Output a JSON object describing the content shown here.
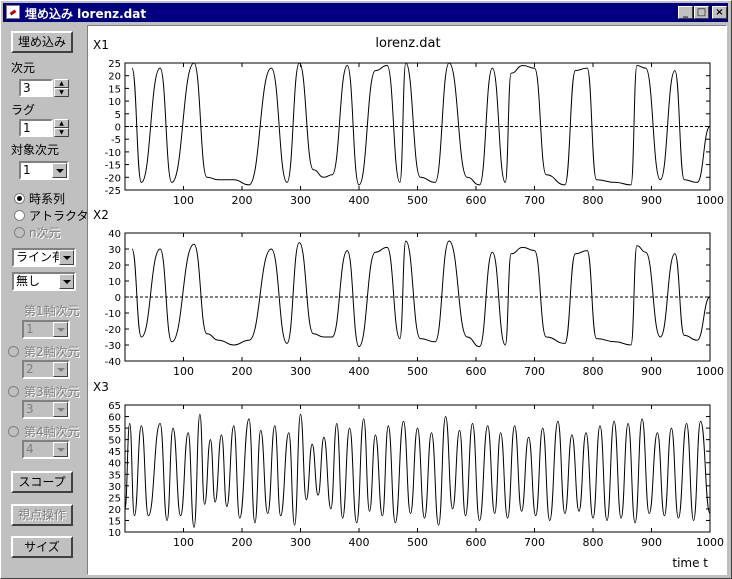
{
  "window": {
    "title": "埋め込み lorenz.dat",
    "min": "_",
    "max": "□",
    "close": "×"
  },
  "sidebar": {
    "embed_button": "埋め込み",
    "dim_label": "次元",
    "dim_value": "3",
    "lag_label": "ラグ",
    "lag_value": "1",
    "target_dim_label": "対象次元",
    "target_dim_value": "1",
    "mode_options": [
      "時系列",
      "アトラクタ",
      "n次元"
    ],
    "mode_selected": "時系列",
    "line_select": "ライン有",
    "marker_select": "無し",
    "axis1_label": "第1軸次元",
    "axis1_value": "1",
    "axis2_label": "第2軸次元",
    "axis2_value": "2",
    "axis3_label": "第3軸次元",
    "axis3_value": "3",
    "axis4_label": "第4軸次元",
    "axis4_value": "4",
    "scope_button": "スコープ",
    "viewpoint_button": "視点操作",
    "size_button": "サイズ"
  },
  "chart_data": {
    "type": "line",
    "title": "lorenz.dat",
    "xlabel": "time t",
    "xlim": [
      0,
      1000
    ],
    "xticks": [
      100,
      200,
      300,
      400,
      500,
      600,
      700,
      800,
      900,
      1000
    ],
    "panels": [
      {
        "name": "X1",
        "ylim": [
          -25,
          25
        ],
        "yticks": [
          25,
          20,
          15,
          10,
          5,
          0,
          -5,
          -10,
          -15,
          -20,
          -25
        ],
        "zero_line": true,
        "peaks": [
          [
            12,
            23
          ],
          [
            28,
            -22
          ],
          [
            60,
            23
          ],
          [
            80,
            -22
          ],
          [
            118,
            25
          ],
          [
            140,
            -20
          ],
          [
            160,
            -21
          ],
          [
            186,
            -21
          ],
          [
            212,
            -23
          ],
          [
            250,
            23
          ],
          [
            277,
            -22
          ],
          [
            298,
            25
          ],
          [
            322,
            -17
          ],
          [
            340,
            -20
          ],
          [
            354,
            -19
          ],
          [
            380,
            24
          ],
          [
            400,
            -23
          ],
          [
            428,
            22
          ],
          [
            448,
            24
          ],
          [
            470,
            -22
          ],
          [
            480,
            25
          ],
          [
            505,
            -20
          ],
          [
            530,
            -22
          ],
          [
            554,
            25
          ],
          [
            585,
            -20
          ],
          [
            606,
            -23
          ],
          [
            628,
            23
          ],
          [
            650,
            -22
          ],
          [
            660,
            21
          ],
          [
            680,
            24
          ],
          [
            700,
            23
          ],
          [
            720,
            -19
          ],
          [
            752,
            -23
          ],
          [
            770,
            22
          ],
          [
            790,
            23
          ],
          [
            806,
            -21
          ],
          [
            838,
            -22
          ],
          [
            865,
            -23
          ],
          [
            875,
            24
          ],
          [
            890,
            23
          ],
          [
            915,
            -21
          ],
          [
            940,
            22
          ],
          [
            956,
            -21
          ],
          [
            978,
            -22
          ],
          [
            1000,
            0
          ]
        ]
      },
      {
        "name": "X2",
        "ylim": [
          -40,
          40
        ],
        "yticks": [
          40,
          30,
          20,
          10,
          0,
          -10,
          -20,
          -30,
          -40
        ],
        "zero_line": true,
        "peaks": [
          [
            12,
            30
          ],
          [
            28,
            -25
          ],
          [
            60,
            30
          ],
          [
            80,
            -28
          ],
          [
            118,
            33
          ],
          [
            140,
            -23
          ],
          [
            160,
            -27
          ],
          [
            186,
            -30
          ],
          [
            212,
            -27
          ],
          [
            250,
            30
          ],
          [
            277,
            -29
          ],
          [
            298,
            34
          ],
          [
            322,
            -23
          ],
          [
            340,
            -25
          ],
          [
            354,
            -25
          ],
          [
            380,
            29
          ],
          [
            400,
            -31
          ],
          [
            428,
            28
          ],
          [
            448,
            31
          ],
          [
            470,
            -26
          ],
          [
            480,
            35
          ],
          [
            505,
            -26
          ],
          [
            530,
            -28
          ],
          [
            554,
            35
          ],
          [
            585,
            -25
          ],
          [
            606,
            -31
          ],
          [
            628,
            28
          ],
          [
            650,
            -30
          ],
          [
            660,
            27
          ],
          [
            680,
            31
          ],
          [
            700,
            29
          ],
          [
            720,
            -25
          ],
          [
            752,
            -29
          ],
          [
            770,
            27
          ],
          [
            790,
            29
          ],
          [
            806,
            -26
          ],
          [
            838,
            -28
          ],
          [
            865,
            -30
          ],
          [
            875,
            32
          ],
          [
            890,
            28
          ],
          [
            915,
            -25
          ],
          [
            940,
            27
          ],
          [
            956,
            -24
          ],
          [
            978,
            -27
          ],
          [
            1000,
            0
          ]
        ]
      },
      {
        "name": "X3",
        "ylim": [
          10,
          65
        ],
        "yticks": [
          65,
          60,
          55,
          50,
          45,
          40,
          35,
          30,
          25,
          20,
          15,
          10
        ],
        "zero_line": false,
        "peaks": [
          [
            0,
            20
          ],
          [
            8,
            57
          ],
          [
            16,
            17
          ],
          [
            28,
            56
          ],
          [
            40,
            17
          ],
          [
            60,
            57
          ],
          [
            72,
            15
          ],
          [
            82,
            55
          ],
          [
            95,
            17
          ],
          [
            108,
            53
          ],
          [
            118,
            12
          ],
          [
            128,
            61
          ],
          [
            136,
            22
          ],
          [
            146,
            50
          ],
          [
            154,
            23
          ],
          [
            165,
            52
          ],
          [
            174,
            21
          ],
          [
            186,
            56
          ],
          [
            196,
            16
          ],
          [
            212,
            59
          ],
          [
            222,
            14
          ],
          [
            232,
            54
          ],
          [
            244,
            18
          ],
          [
            256,
            56
          ],
          [
            266,
            17
          ],
          [
            280,
            53
          ],
          [
            290,
            13
          ],
          [
            300,
            61
          ],
          [
            310,
            24
          ],
          [
            320,
            48
          ],
          [
            330,
            26
          ],
          [
            340,
            51
          ],
          [
            352,
            20
          ],
          [
            362,
            57
          ],
          [
            372,
            16
          ],
          [
            384,
            55
          ],
          [
            396,
            14
          ],
          [
            408,
            59
          ],
          [
            418,
            19
          ],
          [
            428,
            52
          ],
          [
            440,
            17
          ],
          [
            450,
            56
          ],
          [
            462,
            14
          ],
          [
            476,
            58
          ],
          [
            488,
            18
          ],
          [
            500,
            55
          ],
          [
            512,
            16
          ],
          [
            524,
            53
          ],
          [
            536,
            13
          ],
          [
            548,
            60
          ],
          [
            560,
            20
          ],
          [
            572,
            54
          ],
          [
            582,
            17
          ],
          [
            594,
            57
          ],
          [
            606,
            15
          ],
          [
            620,
            56
          ],
          [
            632,
            18
          ],
          [
            642,
            53
          ],
          [
            654,
            16
          ],
          [
            666,
            56
          ],
          [
            678,
            19
          ],
          [
            690,
            51
          ],
          [
            702,
            17
          ],
          [
            714,
            55
          ],
          [
            726,
            15
          ],
          [
            740,
            58
          ],
          [
            752,
            18
          ],
          [
            764,
            52
          ],
          [
            776,
            19
          ],
          [
            788,
            53
          ],
          [
            800,
            16
          ],
          [
            812,
            56
          ],
          [
            824,
            15
          ],
          [
            836,
            58
          ],
          [
            848,
            16
          ],
          [
            860,
            57
          ],
          [
            872,
            14
          ],
          [
            884,
            59
          ],
          [
            896,
            18
          ],
          [
            910,
            53
          ],
          [
            922,
            17
          ],
          [
            934,
            55
          ],
          [
            946,
            16
          ],
          [
            960,
            57
          ],
          [
            972,
            15
          ],
          [
            984,
            58
          ],
          [
            1000,
            18
          ]
        ]
      }
    ]
  }
}
